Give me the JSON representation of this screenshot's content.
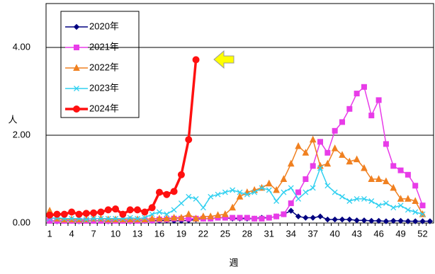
{
  "chart_data": {
    "type": "line",
    "y_label": "人",
    "x_label": "週",
    "categories": [
      1,
      null,
      null,
      4,
      null,
      null,
      7,
      null,
      null,
      10,
      null,
      null,
      13,
      null,
      null,
      16,
      null,
      null,
      19,
      null,
      null,
      22,
      null,
      null,
      25,
      null,
      null,
      28,
      null,
      null,
      31,
      null,
      null,
      34,
      null,
      null,
      37,
      null,
      null,
      40,
      null,
      null,
      43,
      null,
      null,
      46,
      null,
      null,
      49,
      null,
      null,
      52,
      null
    ],
    "ylim": [
      0,
      5
    ],
    "yticks": [
      {
        "value": 0,
        "label": "0.00"
      },
      {
        "value": 2,
        "label": "2.00"
      },
      {
        "value": 4,
        "label": "4.00"
      }
    ],
    "grid": true,
    "legend": "upper left",
    "series": [
      {
        "name": "2020年",
        "color": "#000080",
        "marker": "diamond",
        "values": [
          0.05,
          0.04,
          0.05,
          0.05,
          0.04,
          0.05,
          0.05,
          0.05,
          0.04,
          0.05,
          0.05,
          0.04,
          0.05,
          0.05,
          0.05,
          0.05,
          0.06,
          0.05,
          0.05,
          0.06,
          0.08,
          0.1,
          0.1,
          0.12,
          0.12,
          0.1,
          0.1,
          0.1,
          0.1,
          0.12,
          0.12,
          0.15,
          0.2,
          0.28,
          0.15,
          0.12,
          0.12,
          0.15,
          0.08,
          0.08,
          0.08,
          0.08,
          0.06,
          0.06,
          0.05,
          0.05,
          0.04,
          0.05,
          0.05,
          0.04,
          0.04,
          0.04,
          0.04
        ]
      },
      {
        "name": "2021年",
        "color": "#e83ce8",
        "marker": "square",
        "values": [
          0.05,
          0.05,
          0.05,
          0.05,
          0.05,
          0.05,
          0.05,
          0.05,
          0.05,
          0.05,
          0.05,
          0.05,
          0.05,
          0.06,
          0.06,
          0.08,
          0.08,
          0.1,
          0.1,
          0.1,
          0.1,
          0.1,
          0.1,
          0.12,
          0.12,
          0.12,
          0.12,
          0.12,
          0.1,
          0.1,
          0.12,
          0.15,
          0.2,
          0.45,
          0.7,
          1.0,
          1.3,
          1.85,
          1.6,
          2.1,
          2.3,
          2.6,
          2.95,
          3.1,
          2.45,
          2.8,
          1.8,
          1.3,
          1.2,
          1.1,
          0.85,
          0.4,
          null
        ]
      },
      {
        "name": "2022年",
        "color": "#f08020",
        "marker": "triangle",
        "values": [
          0.28,
          0.1,
          0.08,
          0.08,
          0.08,
          0.08,
          0.1,
          0.1,
          0.08,
          0.08,
          0.08,
          0.08,
          0.08,
          0.08,
          0.1,
          0.1,
          0.1,
          0.12,
          0.12,
          0.2,
          0.1,
          0.15,
          0.15,
          0.18,
          0.2,
          0.35,
          0.6,
          0.7,
          0.75,
          0.8,
          0.9,
          0.75,
          1.0,
          1.35,
          1.75,
          1.6,
          1.9,
          1.3,
          1.35,
          1.7,
          1.55,
          1.4,
          1.45,
          1.25,
          1.0,
          1.0,
          0.95,
          0.8,
          0.55,
          0.55,
          0.5,
          0.2,
          null
        ]
      },
      {
        "name": "2023年",
        "color": "#30d0f0",
        "marker": "x",
        "values": [
          0.1,
          0.12,
          0.1,
          0.1,
          0.1,
          0.08,
          0.1,
          0.1,
          0.1,
          0.1,
          0.1,
          0.12,
          0.1,
          0.12,
          0.2,
          0.25,
          0.2,
          0.3,
          0.45,
          0.6,
          0.55,
          0.35,
          0.6,
          0.65,
          0.7,
          0.75,
          0.7,
          0.65,
          0.7,
          0.8,
          0.75,
          0.5,
          0.7,
          0.8,
          0.55,
          0.7,
          0.8,
          1.25,
          0.85,
          0.7,
          0.6,
          0.5,
          0.55,
          0.55,
          0.5,
          0.4,
          0.45,
          0.35,
          0.4,
          0.3,
          0.25,
          0.2,
          null
        ]
      },
      {
        "name": "2024年",
        "color": "#ff1010",
        "marker": "circle",
        "values": [
          0.18,
          0.2,
          0.2,
          0.25,
          0.2,
          0.22,
          0.23,
          0.25,
          0.3,
          0.32,
          0.2,
          0.3,
          0.3,
          0.25,
          0.35,
          0.7,
          0.65,
          0.72,
          1.1,
          1.9,
          3.72,
          null,
          null,
          null,
          null,
          null,
          null,
          null,
          null,
          null,
          null,
          null,
          null,
          null,
          null,
          null,
          null,
          null,
          null,
          null,
          null,
          null,
          null,
          null,
          null,
          null,
          null,
          null,
          null,
          null,
          null,
          null,
          null
        ]
      }
    ]
  }
}
